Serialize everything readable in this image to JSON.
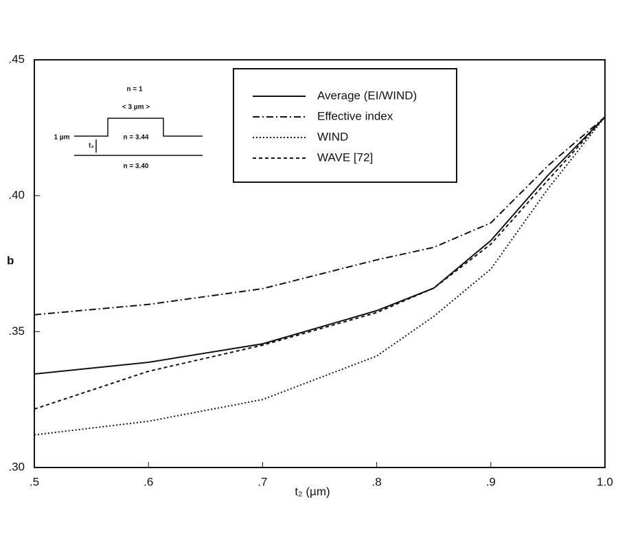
{
  "chart_data": {
    "type": "line",
    "x_label": "t₂ (µm)",
    "y_label": "b",
    "x": [
      0.5,
      0.6,
      0.7,
      0.8,
      0.85,
      0.9,
      0.95,
      1.0
    ],
    "series": [
      {
        "name": "Average (EI/WIND)",
        "color": "#111111",
        "style": "solid",
        "values": [
          0.3344,
          0.3387,
          0.3455,
          0.3577,
          0.366,
          0.3835,
          0.4075,
          0.429
        ]
      },
      {
        "name": "Effective index",
        "color": "#111111",
        "style": "dashdot",
        "values": [
          0.3562,
          0.36,
          0.3658,
          0.3764,
          0.381,
          0.39,
          0.411,
          0.429
        ]
      },
      {
        "name": "WIND",
        "color": "#111111",
        "style": "dotted",
        "values": [
          0.312,
          0.317,
          0.325,
          0.341,
          0.3556,
          0.373,
          0.4025,
          0.429
        ]
      },
      {
        "name": "WAVE [72]",
        "color": "#111111",
        "style": "dashed",
        "values": [
          0.3215,
          0.3354,
          0.345,
          0.357,
          0.366,
          0.3822,
          0.4057,
          0.429
        ]
      }
    ],
    "xlim": [
      0.5,
      1.0
    ],
    "ylim": [
      0.3,
      0.45
    ],
    "xticks": [
      {
        "value": 0.5,
        "label": ".5"
      },
      {
        "value": 0.6,
        "label": ".6"
      },
      {
        "value": 0.7,
        "label": ".7"
      },
      {
        "value": 0.8,
        "label": ".8"
      },
      {
        "value": 0.9,
        "label": ".9"
      },
      {
        "value": 1.0,
        "label": "1.0"
      }
    ],
    "yticks": [
      {
        "value": 0.3,
        "label": ".30"
      },
      {
        "value": 0.35,
        "label": ".35"
      },
      {
        "value": 0.4,
        "label": ".40"
      },
      {
        "value": 0.45,
        "label": ".45"
      }
    ],
    "grid": false,
    "annotations": [
      "n = 1",
      "< 3 µm >",
      "1 µm",
      "t₂",
      "n = 3.44",
      "n = 3.40"
    ]
  }
}
